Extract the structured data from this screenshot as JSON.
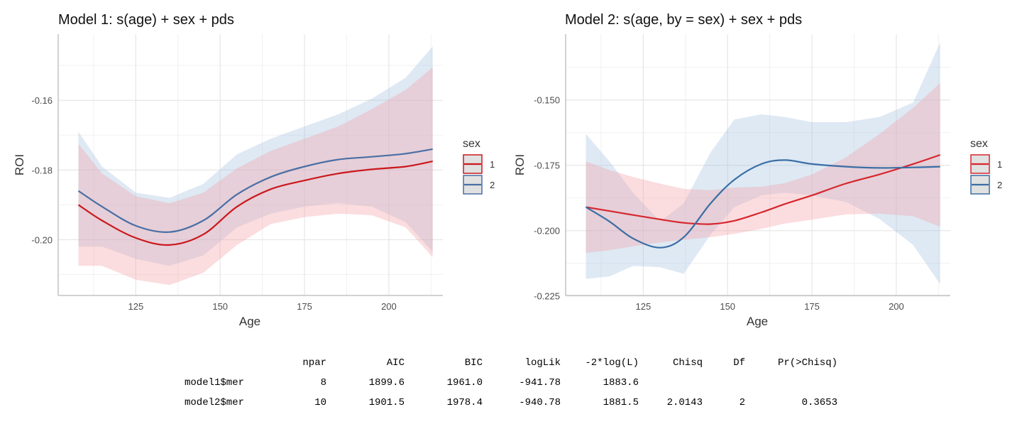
{
  "legend_title": "sex",
  "chart_data": [
    {
      "type": "line",
      "title": "Model 1: s(age) + sex + pds",
      "xlabel": "Age",
      "ylabel": "ROI",
      "xlim": [
        102,
        216
      ],
      "ylim": [
        -0.216,
        -0.141
      ],
      "xticks": [
        125,
        150,
        175,
        200
      ],
      "yticks": [
        -0.16,
        -0.18,
        -0.2
      ],
      "ytick_labels": [
        "-0.16",
        "-0.18",
        "-0.20"
      ],
      "grid": true,
      "legend": "right",
      "x": [
        108,
        115,
        125,
        135,
        145,
        155,
        165,
        175,
        185,
        195,
        205,
        213
      ],
      "series": [
        {
          "name": "1",
          "color": "#cb181d",
          "band_color": "#f4a6aa",
          "values": [
            -0.19,
            -0.1945,
            -0.1995,
            -0.2015,
            -0.1985,
            -0.1905,
            -0.1855,
            -0.183,
            -0.181,
            -0.1798,
            -0.179,
            -0.1775
          ],
          "lower": [
            -0.2075,
            -0.2075,
            -0.2115,
            -0.213,
            -0.2095,
            -0.2015,
            -0.1955,
            -0.1935,
            -0.1925,
            -0.193,
            -0.1965,
            -0.205
          ],
          "upper": [
            -0.1725,
            -0.181,
            -0.1875,
            -0.1895,
            -0.1865,
            -0.1795,
            -0.1745,
            -0.171,
            -0.1675,
            -0.1625,
            -0.157,
            -0.1505
          ]
        },
        {
          "name": "2",
          "color": "#4a6fa5",
          "band_color": "#a9c6e3",
          "values": [
            -0.186,
            -0.1905,
            -0.196,
            -0.1978,
            -0.1945,
            -0.187,
            -0.182,
            -0.179,
            -0.177,
            -0.1762,
            -0.1753,
            -0.174
          ],
          "lower": [
            -0.202,
            -0.202,
            -0.2055,
            -0.2075,
            -0.2045,
            -0.1965,
            -0.1925,
            -0.1905,
            -0.1895,
            -0.1905,
            -0.195,
            -0.2035
          ],
          "upper": [
            -0.169,
            -0.179,
            -0.1865,
            -0.188,
            -0.184,
            -0.1755,
            -0.171,
            -0.1675,
            -0.164,
            -0.1595,
            -0.1535,
            -0.1445
          ]
        }
      ]
    },
    {
      "type": "line",
      "title": "Model 2: s(age, by = sex) + sex + pds",
      "xlabel": "Age",
      "ylabel": "ROI",
      "xlim": [
        102,
        216
      ],
      "ylim": [
        -0.2248,
        -0.1248
      ],
      "xticks": [
        125,
        150,
        175,
        200
      ],
      "yticks": [
        -0.15,
        -0.175,
        -0.2,
        -0.225
      ],
      "ytick_labels": [
        "-0.150",
        "-0.175",
        "-0.200",
        "-0.225"
      ],
      "grid": true,
      "legend": "right",
      "x": [
        108,
        115,
        122,
        130,
        137,
        145,
        152,
        160,
        167,
        175,
        185,
        195,
        205,
        213
      ],
      "series": [
        {
          "name": "1",
          "color": "#d7262d",
          "band_color": "#f4a6aa",
          "values": [
            -0.191,
            -0.1925,
            -0.194,
            -0.1957,
            -0.197,
            -0.1975,
            -0.1962,
            -0.193,
            -0.1898,
            -0.1865,
            -0.182,
            -0.1785,
            -0.1745,
            -0.171
          ],
          "lower": [
            -0.2085,
            -0.2075,
            -0.206,
            -0.2045,
            -0.2035,
            -0.2025,
            -0.2012,
            -0.1993,
            -0.1973,
            -0.1958,
            -0.1938,
            -0.1935,
            -0.1945,
            -0.1985
          ],
          "upper": [
            -0.1735,
            -0.1768,
            -0.1795,
            -0.182,
            -0.184,
            -0.1845,
            -0.1835,
            -0.1832,
            -0.1818,
            -0.1785,
            -0.172,
            -0.163,
            -0.153,
            -0.1435
          ]
        },
        {
          "name": "2",
          "color": "#3a6ea5",
          "band_color": "#a9c6e3",
          "values": [
            -0.191,
            -0.1965,
            -0.203,
            -0.2065,
            -0.2025,
            -0.1895,
            -0.1805,
            -0.1745,
            -0.173,
            -0.1745,
            -0.1755,
            -0.176,
            -0.1758,
            -0.1755
          ],
          "lower": [
            -0.2185,
            -0.2175,
            -0.2135,
            -0.214,
            -0.2165,
            -0.2015,
            -0.191,
            -0.1865,
            -0.1855,
            -0.1865,
            -0.189,
            -0.1955,
            -0.2055,
            -0.2205
          ],
          "upper": [
            -0.163,
            -0.1735,
            -0.1855,
            -0.1965,
            -0.1895,
            -0.17,
            -0.1575,
            -0.1555,
            -0.1565,
            -0.1585,
            -0.1585,
            -0.1565,
            -0.151,
            -0.128
          ]
        }
      ]
    }
  ],
  "anova_table": {
    "headers": [
      "npar",
      "AIC",
      "BIC",
      "logLik",
      "-2*log(L)",
      "Chisq",
      "Df",
      "Pr(>Chisq)"
    ],
    "rows": [
      {
        "name": "model1$mer",
        "cells": [
          "8",
          "1899.6",
          "1961.0",
          "-941.78",
          "1883.6",
          "",
          "",
          ""
        ]
      },
      {
        "name": "model2$mer",
        "cells": [
          "10",
          "1901.5",
          "1978.4",
          "-940.78",
          "1881.5",
          "2.0143",
          "2",
          "0.3653"
        ]
      }
    ]
  }
}
